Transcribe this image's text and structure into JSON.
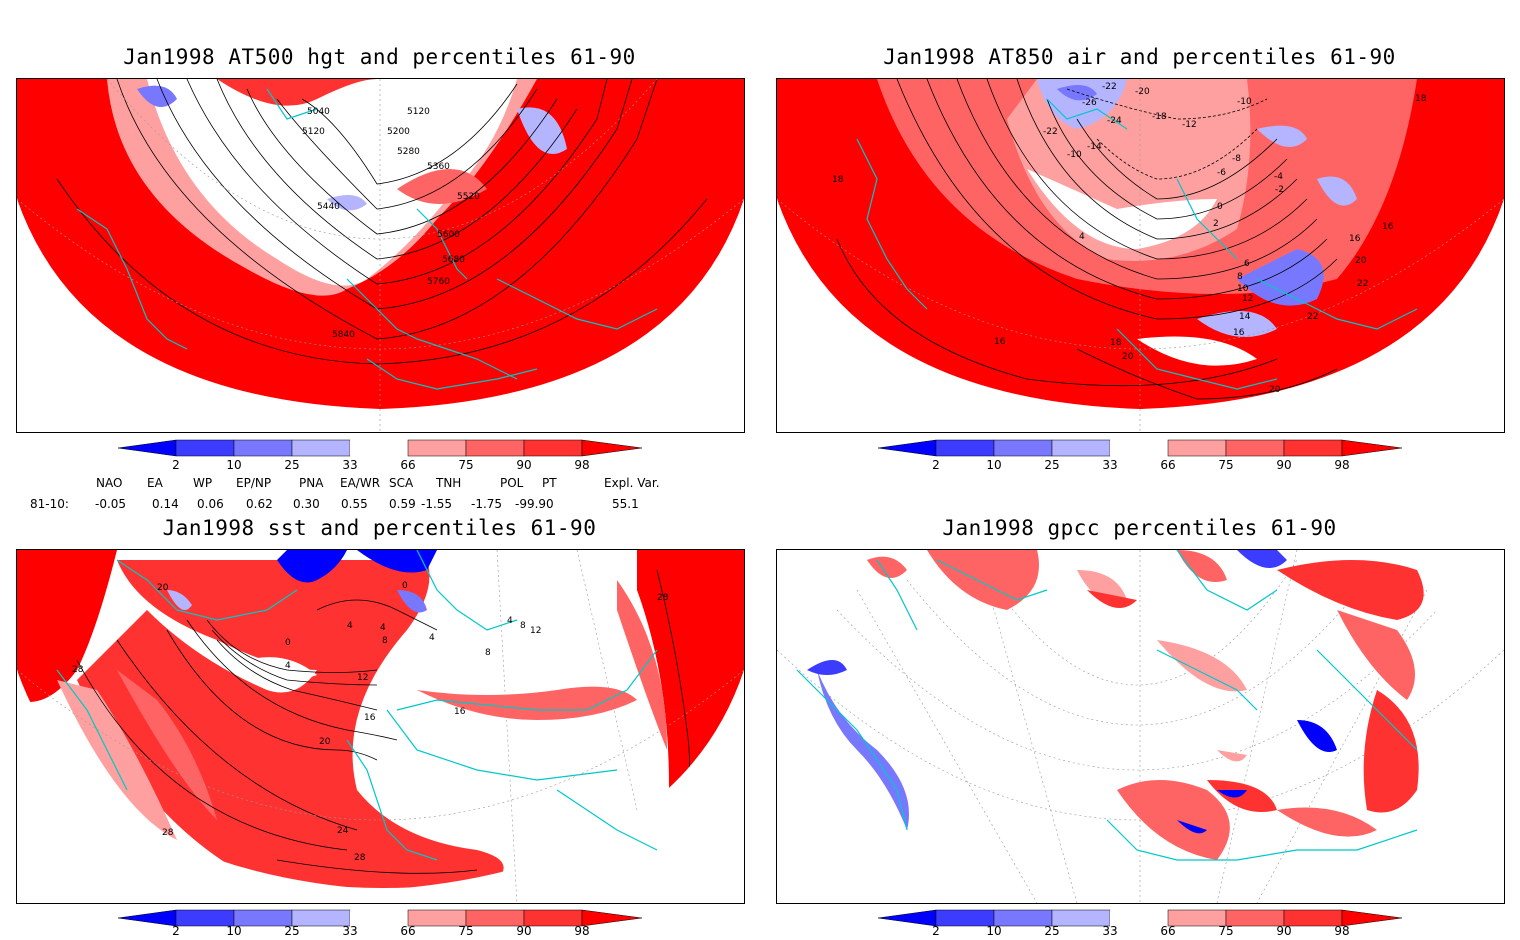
{
  "panels": [
    {
      "title": "Jan1998 AT500 hgt and percentiles 61-90",
      "contour_labels": [
        "5040",
        "5120",
        "5120",
        "5200",
        "5280",
        "5360",
        "5440",
        "5520",
        "5600",
        "5680",
        "5760",
        "5840"
      ]
    },
    {
      "title": "Jan1998 AT850 air and percentiles 61-90",
      "contour_labels": [
        "-22",
        "-20",
        "-26",
        "-24",
        "-18",
        "-12",
        "-10",
        "-22",
        "-14",
        "-10",
        "-8",
        "-6",
        "-4",
        "-2",
        "0",
        "2",
        "4",
        "6",
        "8",
        "10",
        "12",
        "14",
        "16",
        "18",
        "18",
        "16",
        "16",
        "20",
        "22",
        "22",
        "16",
        "20",
        "18",
        "20"
      ]
    },
    {
      "title": "Jan1998 sst and percentiles 61-90",
      "contour_labels": [
        "20",
        "0",
        "4",
        "4",
        "8",
        "4",
        "0",
        "4",
        "12",
        "16",
        "16",
        "20",
        "24",
        "28",
        "28",
        "28",
        "28",
        "8",
        "12",
        "4",
        "8"
      ]
    },
    {
      "title": "Jan1998 gpcc percentiles 61-90",
      "contour_labels": []
    }
  ],
  "colorbar": {
    "ticks": [
      "2",
      "10",
      "25",
      "33",
      "66",
      "75",
      "90",
      "98"
    ],
    "colors": {
      "blue_dark": "#0000ff",
      "blue_mid": "#3c3cff",
      "blue_light": "#7878ff",
      "blue_pale": "#b4b4ff",
      "white": "#ffffff",
      "red_pale": "#ffa0a0",
      "red_light": "#ff6464",
      "red_mid": "#ff3232",
      "red_dark": "#ff0000"
    }
  },
  "indices": {
    "headers": [
      "NAO",
      "EA",
      "WP",
      "EP/NP",
      "PNA",
      "EA/WR",
      "SCA",
      "TNH",
      "POL",
      "PT",
      "Expl. Var."
    ],
    "row_label": "81-10:",
    "values": [
      "-0.05",
      "0.14",
      "0.06",
      "0.62",
      "0.30",
      "0.55",
      "0.59",
      "-1.55",
      "-1.75",
      "-99.90",
      "55.1"
    ]
  },
  "map_colors": {
    "coast": "#00c8c8",
    "contour": "#000000",
    "red": "#ff0000",
    "blue": "#5a5aff",
    "grid": "#808080"
  }
}
